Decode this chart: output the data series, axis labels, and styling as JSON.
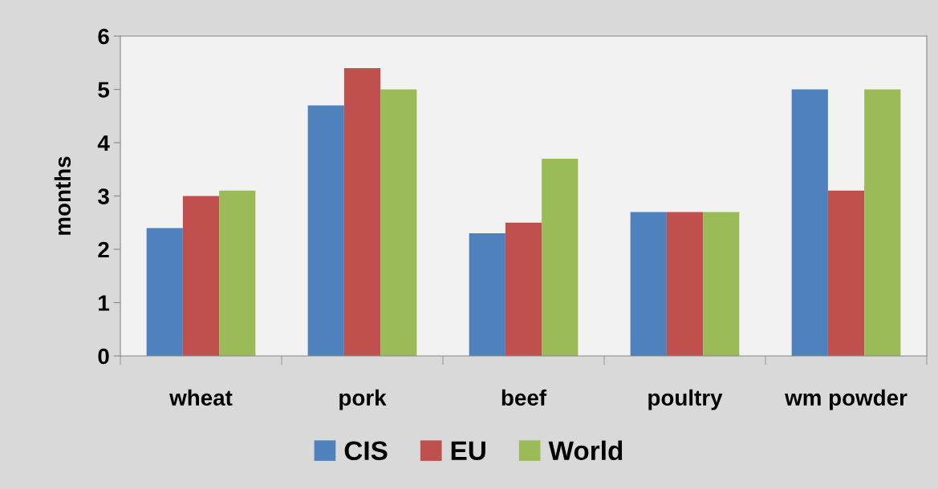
{
  "chart_data": {
    "type": "bar",
    "ylabel": "months",
    "categories": [
      "wheat",
      "pork",
      "beef",
      "poultry",
      "wm powder"
    ],
    "series": [
      {
        "name": "CIS",
        "color": "#4f81bd",
        "values": [
          2.4,
          4.7,
          2.3,
          2.7,
          5.0
        ]
      },
      {
        "name": "EU",
        "color": "#c0504d",
        "values": [
          3.0,
          5.4,
          2.5,
          2.7,
          3.1
        ]
      },
      {
        "name": "World",
        "color": "#9bbb59",
        "values": [
          3.1,
          5.0,
          3.7,
          2.7,
          5.0
        ]
      }
    ],
    "ylim": [
      0,
      6
    ],
    "yticks": [
      0,
      1,
      2,
      3,
      4,
      5,
      6
    ],
    "grid": false,
    "legend": "bottom"
  }
}
